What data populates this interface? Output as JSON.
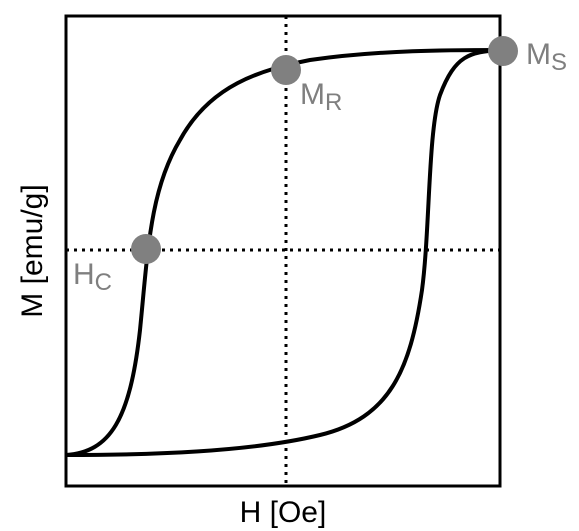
{
  "axes": {
    "x_label": "H [Oe]",
    "y_label": "M [emu/g]"
  },
  "points": {
    "saturation": {
      "main": "M",
      "sub": "S"
    },
    "remanence": {
      "main": "M",
      "sub": "R"
    },
    "coercivity": {
      "main": "H",
      "sub": "C"
    }
  },
  "colors": {
    "curve": "#000000",
    "frame": "#000000",
    "marker": "#808080",
    "marker_label": "#7f7f7f",
    "background": "#ffffff"
  }
}
